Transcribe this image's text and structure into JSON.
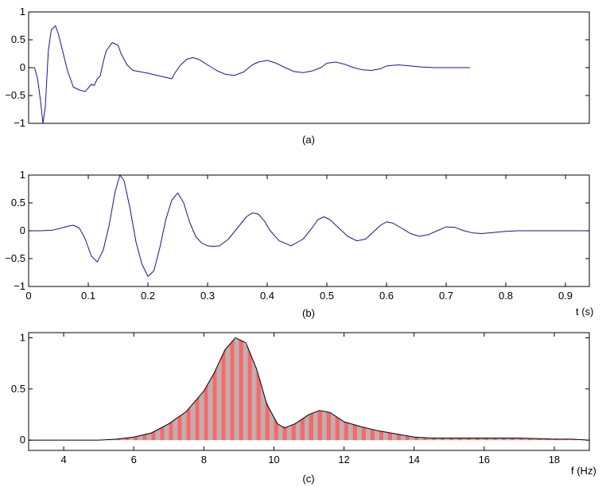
{
  "chart_data": [
    {
      "type": "line",
      "id": "a",
      "caption": "(a)",
      "xlim": [
        0,
        0.94
      ],
      "ylim": [
        -1,
        1
      ],
      "yticks": [
        "1",
        "0.5",
        "0",
        "−0.5",
        "−1"
      ],
      "ytick_values": [
        1,
        0.5,
        0,
        -0.5,
        -1
      ],
      "series": [
        {
          "color": "#1010c0",
          "x": [
            0,
            0.01,
            0.015,
            0.02,
            0.024,
            0.028,
            0.033,
            0.038,
            0.045,
            0.05,
            0.057,
            0.065,
            0.075,
            0.085,
            0.095,
            0.105,
            0.11,
            0.115,
            0.12,
            0.125,
            0.13,
            0.14,
            0.15,
            0.155,
            0.165,
            0.175,
            0.185,
            0.2,
            0.22,
            0.24,
            0.245,
            0.255,
            0.265,
            0.275,
            0.285,
            0.3,
            0.315,
            0.33,
            0.345,
            0.36,
            0.375,
            0.385,
            0.4,
            0.415,
            0.43,
            0.445,
            0.46,
            0.475,
            0.49,
            0.5,
            0.515,
            0.53,
            0.545,
            0.56,
            0.575,
            0.59,
            0.6,
            0.62,
            0.64,
            0.66,
            0.68,
            0.7,
            0.72,
            0.74
          ],
          "y": [
            0,
            0,
            -0.2,
            -0.6,
            -1.0,
            -0.7,
            0.3,
            0.68,
            0.75,
            0.6,
            0.3,
            -0.05,
            -0.35,
            -0.4,
            -0.43,
            -0.3,
            -0.32,
            -0.2,
            -0.15,
            0.1,
            0.3,
            0.45,
            0.4,
            0.25,
            0.05,
            -0.05,
            -0.07,
            -0.1,
            -0.15,
            -0.2,
            -0.1,
            0.05,
            0.15,
            0.18,
            0.15,
            0.05,
            -0.05,
            -0.12,
            -0.14,
            -0.08,
            0.05,
            0.1,
            0.13,
            0.08,
            0.0,
            -0.07,
            -0.09,
            -0.06,
            0.0,
            0.08,
            0.1,
            0.06,
            0.0,
            -0.04,
            -0.05,
            -0.02,
            0.03,
            0.05,
            0.03,
            0.01,
            0.0,
            0.0,
            0.0,
            0.0
          ]
        }
      ]
    },
    {
      "type": "line",
      "id": "b",
      "caption": "(b)",
      "xlabel": "t (s)",
      "xlim": [
        0,
        0.94
      ],
      "ylim": [
        -1,
        1
      ],
      "xticks": [
        "0",
        "0.1",
        "0.2",
        "0.3",
        "0.4",
        "0.5",
        "0.6",
        "0.7",
        "0.8",
        "0.9"
      ],
      "xtick_values": [
        0,
        0.1,
        0.2,
        0.3,
        0.4,
        0.5,
        0.6,
        0.7,
        0.8,
        0.9
      ],
      "yticks": [
        "1",
        "0.5",
        "0",
        "−0.5",
        "−1"
      ],
      "ytick_values": [
        1,
        0.5,
        0,
        -0.5,
        -1
      ],
      "series": [
        {
          "color": "#1010c0",
          "x": [
            0,
            0.02,
            0.04,
            0.055,
            0.065,
            0.075,
            0.085,
            0.095,
            0.105,
            0.115,
            0.125,
            0.135,
            0.145,
            0.153,
            0.16,
            0.17,
            0.18,
            0.19,
            0.2,
            0.21,
            0.22,
            0.23,
            0.24,
            0.25,
            0.26,
            0.27,
            0.28,
            0.29,
            0.3,
            0.31,
            0.32,
            0.335,
            0.35,
            0.365,
            0.375,
            0.385,
            0.395,
            0.405,
            0.42,
            0.44,
            0.46,
            0.475,
            0.485,
            0.495,
            0.505,
            0.52,
            0.535,
            0.55,
            0.565,
            0.575,
            0.59,
            0.6,
            0.61,
            0.625,
            0.64,
            0.655,
            0.67,
            0.685,
            0.7,
            0.715,
            0.73,
            0.745,
            0.76,
            0.78,
            0.8,
            0.82,
            0.85,
            0.9,
            0.94
          ],
          "y": [
            0,
            0,
            0.01,
            0.05,
            0.08,
            0.1,
            0.05,
            -0.15,
            -0.45,
            -0.56,
            -0.35,
            0.1,
            0.7,
            1.0,
            0.9,
            0.4,
            -0.2,
            -0.6,
            -0.82,
            -0.72,
            -0.3,
            0.2,
            0.55,
            0.68,
            0.5,
            0.15,
            -0.1,
            -0.22,
            -0.27,
            -0.28,
            -0.27,
            -0.15,
            0.05,
            0.25,
            0.32,
            0.3,
            0.18,
            0.0,
            -0.18,
            -0.27,
            -0.15,
            0.05,
            0.2,
            0.25,
            0.2,
            0.05,
            -0.1,
            -0.18,
            -0.15,
            -0.05,
            0.1,
            0.16,
            0.14,
            0.05,
            -0.05,
            -0.1,
            -0.07,
            0.0,
            0.07,
            0.06,
            0.0,
            -0.04,
            -0.05,
            -0.03,
            -0.01,
            0.0,
            0.0,
            0.0,
            0.0
          ]
        }
      ]
    },
    {
      "type": "area",
      "id": "c",
      "caption": "(c)",
      "xlabel": "f (Hz)",
      "xlim": [
        3,
        19
      ],
      "ylim": [
        -0.1,
        1.05
      ],
      "xticks": [
        "4",
        "6",
        "8",
        "10",
        "12",
        "14",
        "16",
        "18"
      ],
      "xtick_values": [
        4,
        6,
        8,
        10,
        12,
        14,
        16,
        18
      ],
      "yticks": [
        "1",
        "0.5",
        "0"
      ],
      "ytick_values": [
        1,
        0.5,
        0
      ],
      "fill_colors": [
        "#ff6666",
        "#b4b4b4"
      ],
      "series": [
        {
          "color": "#000000",
          "x": [
            3,
            4,
            5,
            5.5,
            6,
            6.5,
            7,
            7.5,
            8,
            8.3,
            8.6,
            8.9,
            9.2,
            9.5,
            9.8,
            10.1,
            10.3,
            10.6,
            11,
            11.3,
            11.6,
            12,
            12.5,
            13,
            13.5,
            14,
            14.5,
            15,
            16,
            17,
            18,
            18.5,
            19
          ],
          "y": [
            0,
            0,
            0,
            0.01,
            0.03,
            0.07,
            0.16,
            0.28,
            0.48,
            0.66,
            0.88,
            1.0,
            0.95,
            0.7,
            0.35,
            0.16,
            0.12,
            0.16,
            0.25,
            0.29,
            0.27,
            0.18,
            0.13,
            0.09,
            0.06,
            0.03,
            0.02,
            0.02,
            0.02,
            0.02,
            0.01,
            0.01,
            0.0
          ]
        }
      ]
    }
  ]
}
